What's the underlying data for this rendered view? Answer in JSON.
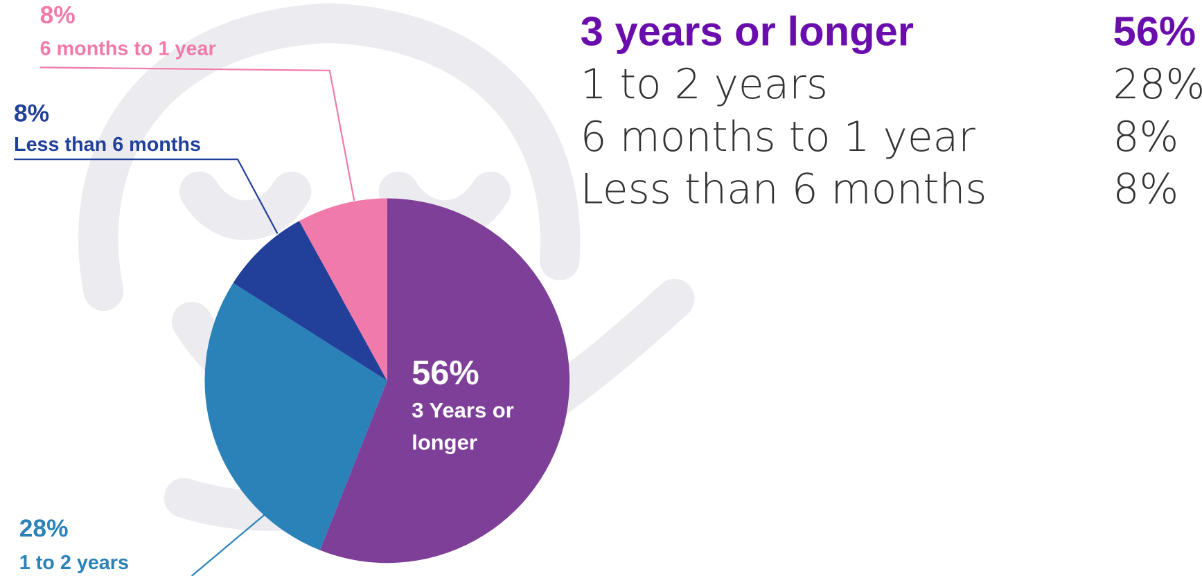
{
  "chart_data": {
    "type": "pie",
    "categories": [
      "3 Years or longer",
      "1 to 2 years",
      "Less than 6 months",
      "6 months to 1 year"
    ],
    "values": [
      56,
      28,
      8,
      8
    ],
    "value_labels": [
      "56%",
      "28%",
      "8%",
      "8%"
    ],
    "colors": [
      "#7e3f98",
      "#2b82b9",
      "#22409a",
      "#f07aaa"
    ],
    "legend": {
      "labels": [
        "3 years or longer",
        "1 to 2 years",
        "6 months to 1 year",
        "Less than 6 months"
      ],
      "values": [
        56,
        28,
        8,
        8
      ],
      "value_labels": [
        "56%",
        "28%",
        "8%",
        "8%"
      ]
    }
  }
}
